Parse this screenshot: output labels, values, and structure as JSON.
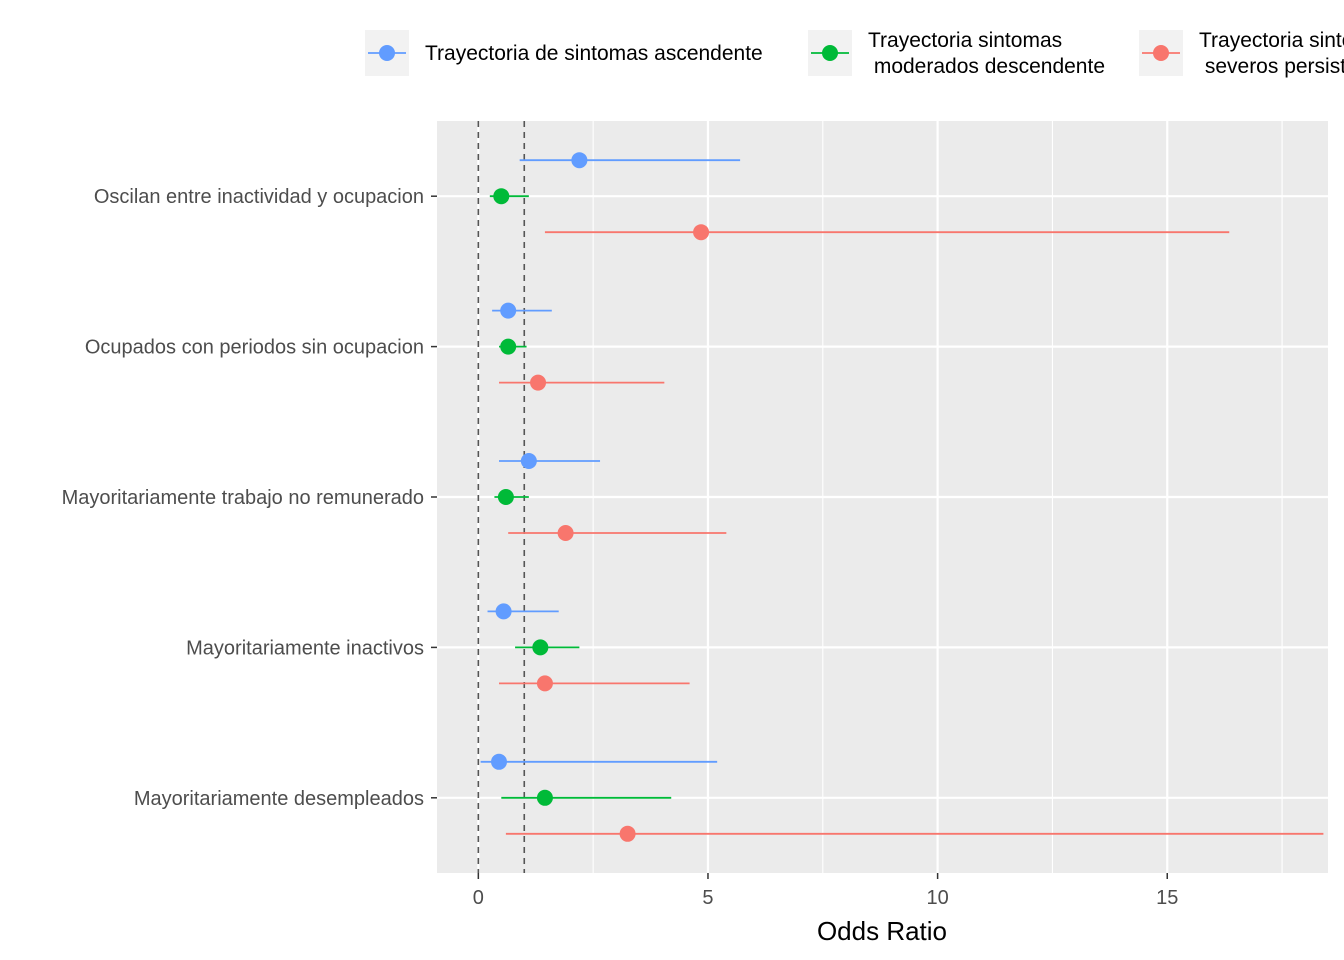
{
  "chart_data": {
    "type": "scatter",
    "subtype": "forest-plot",
    "xlabel": "Odds Ratio",
    "ylabel": "",
    "xlim": [
      -0.9,
      18.5
    ],
    "xticks": [
      0,
      5,
      10,
      15
    ],
    "reference_lines": [
      0,
      1
    ],
    "grid": true,
    "legend_position": "top",
    "categories": [
      "Oscilan entre inactividad y ocupacion",
      "Ocupados con periodos sin ocupacion",
      "Mayoritariamente trabajo no remunerado",
      "Mayoritariamente inactivos",
      "Mayoritariamente desempleados"
    ],
    "series": [
      {
        "name": "Trayectoria de sintomas ascendente",
        "legend_lines": [
          "Trayectoria de sintomas ascendente"
        ],
        "color": "#619CFF",
        "offset": -1,
        "estimate": [
          2.2,
          0.65,
          1.1,
          0.55,
          0.45
        ],
        "lower": [
          0.9,
          0.3,
          0.45,
          0.2,
          0.05
        ],
        "upper": [
          5.7,
          1.6,
          2.65,
          1.75,
          5.2
        ]
      },
      {
        "name": "Trayectoria sintomas moderados descendente",
        "legend_lines": [
          "Trayectoria sintomas",
          " moderados descendente"
        ],
        "color": "#00BA38",
        "offset": 0,
        "estimate": [
          0.5,
          0.65,
          0.6,
          1.35,
          1.45
        ],
        "lower": [
          0.25,
          0.45,
          0.35,
          0.8,
          0.5
        ],
        "upper": [
          1.1,
          1.05,
          1.1,
          2.2,
          4.2
        ]
      },
      {
        "name": "Trayectoria sintomas severos persistentes",
        "legend_lines": [
          "Trayectoria sintomas",
          " severos persistentes"
        ],
        "color": "#F8766D",
        "offset": 1,
        "estimate": [
          4.85,
          1.3,
          1.9,
          1.45,
          3.25
        ],
        "lower": [
          1.45,
          0.45,
          0.65,
          0.45,
          0.6
        ],
        "upper": [
          16.35,
          4.05,
          5.4,
          4.6,
          18.4
        ]
      }
    ]
  }
}
